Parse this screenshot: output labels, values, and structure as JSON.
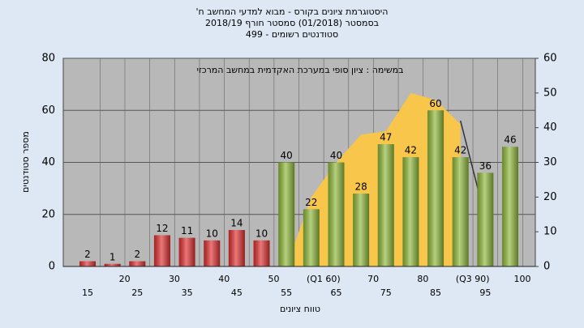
{
  "chart_data": {
    "type": "bar",
    "title": [
      "היסטוגרמת ציונים בקורס - מבוא למדעי המחשב ח'",
      "בסמסטר (01/2018) סמסטר חורף 2018/19",
      "סטודנטים רשומים - 499"
    ],
    "annotation": "במשימה : ציון סופי במערכת האקדמית במחשב המרכזי",
    "x_label": "טווח ציונים",
    "y_label": "מספר סטודנטים",
    "categories": [
      "15",
      "20",
      "25",
      "30",
      "35",
      "40",
      "45",
      "50",
      "55",
      "(Q1 60)",
      "65",
      "70",
      "75",
      "80",
      "85",
      "(Q3 90)",
      "95",
      "100"
    ],
    "series": [
      {
        "type": "bar",
        "values": [
          2,
          1,
          2,
          12,
          11,
          10,
          14,
          10,
          40,
          22,
          40,
          28,
          47,
          42,
          60,
          42,
          36,
          46
        ],
        "colors": [
          "#e03030",
          "#e03030",
          "#e03030",
          "#e03030",
          "#e03030",
          "#e03030",
          "#e03030",
          "#e03030",
          "#8fb83a",
          "#8fb83a",
          "#8fb83a",
          "#8fb83a",
          "#8fb83a",
          "#8fb83a",
          "#8fb83a",
          "#8fb83a",
          "#8fb83a",
          "#8fb83a"
        ]
      },
      {
        "type": "area",
        "axis": "y2",
        "color": "#f7c64a",
        "values": [
          null,
          null,
          null,
          null,
          null,
          null,
          null,
          null,
          0,
          20,
          30,
          38,
          39,
          50,
          48,
          41,
          null,
          null
        ]
      },
      {
        "type": "line",
        "axis": "y2",
        "color": "#333333",
        "values": [
          null,
          null,
          null,
          null,
          null,
          null,
          null,
          null,
          null,
          null,
          null,
          null,
          null,
          null,
          null,
          42,
          14,
          null
        ]
      }
    ],
    "ylim": [
      0,
      80
    ],
    "yticks": [
      0,
      20,
      40,
      60,
      80
    ],
    "y2lim": [
      0,
      60
    ],
    "y2ticks": [
      0,
      10,
      20,
      30,
      40,
      50,
      60
    ],
    "grid": true
  }
}
